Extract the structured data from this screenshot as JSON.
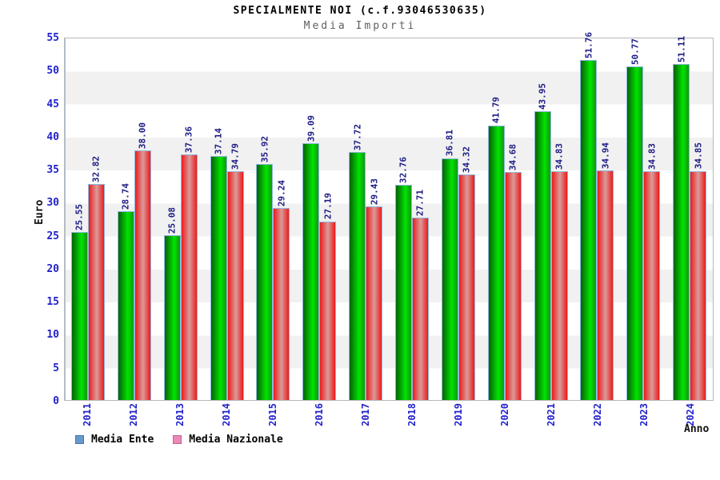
{
  "header": {
    "title": "SPECIALMENTE NOI (c.f.93046530635)",
    "subtitle": "Media Importi"
  },
  "axes": {
    "y_label": "Euro",
    "x_label": "Anno"
  },
  "legend": {
    "items": [
      {
        "label": "Media Ente",
        "swatch_color": "#6699cc",
        "swatch_border": "#4477aa"
      },
      {
        "label": "Media Nazionale",
        "swatch_color": "#ee88bb",
        "swatch_border": "#bb6688"
      }
    ]
  },
  "colors": {
    "axis_text": "#2222cc",
    "value_label": "#1b1b85",
    "subtitle_text": "#606060",
    "plot_border": "#b8b8b8",
    "band_white": "#ffffff",
    "band_gray": "#f1f1f1",
    "bar_green": "#00e400",
    "bar_red": "#ee1a1a"
  },
  "chart_data": {
    "type": "bar",
    "title": "SPECIALMENTE NOI (c.f.93046530635)",
    "subtitle": "Media Importi",
    "xlabel": "Anno",
    "ylabel": "Euro",
    "ylim": [
      0,
      55
    ],
    "yticks": [
      0,
      5,
      10,
      15,
      20,
      25,
      30,
      35,
      40,
      45,
      50,
      55
    ],
    "grid": "horizontal-bands",
    "legend_position": "bottom-left",
    "value_label_decimals": 2,
    "value_label_rotation": 90,
    "categories": [
      "2011",
      "2012",
      "2013",
      "2014",
      "2015",
      "2016",
      "2017",
      "2018",
      "2019",
      "2020",
      "2021",
      "2022",
      "2023",
      "2024"
    ],
    "series": [
      {
        "name": "Media Ente",
        "color": "green",
        "values": [
          25.55,
          28.74,
          25.08,
          37.14,
          35.92,
          39.09,
          37.72,
          32.76,
          36.81,
          41.79,
          43.95,
          51.76,
          50.77,
          51.11
        ]
      },
      {
        "name": "Media Nazionale",
        "color": "red",
        "values": [
          32.82,
          38.0,
          37.36,
          34.79,
          29.24,
          27.19,
          29.43,
          27.71,
          34.32,
          34.68,
          34.83,
          34.94,
          34.83,
          34.85
        ]
      }
    ]
  }
}
